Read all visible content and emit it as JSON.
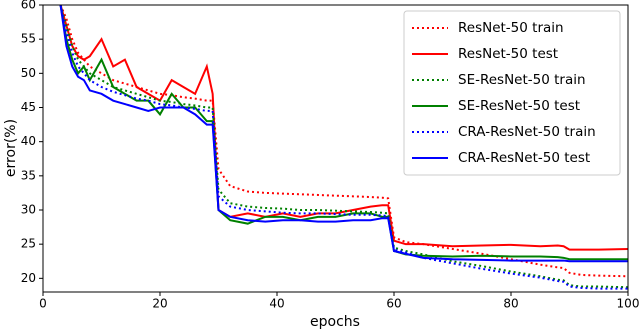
{
  "chart_data": {
    "type": "line",
    "xlabel": "epochs",
    "ylabel": "error(%)",
    "xlim": [
      0,
      100
    ],
    "xticks": [
      0,
      20,
      40,
      60,
      80,
      100
    ],
    "ylim": [
      18,
      60
    ],
    "yticks": [
      20,
      25,
      30,
      35,
      40,
      45,
      50,
      55,
      60
    ],
    "grid": false,
    "legend": "upper right",
    "x": [
      3,
      4,
      5,
      6,
      7,
      8,
      10,
      12,
      14,
      16,
      18,
      20,
      22,
      24,
      26,
      28,
      29,
      30,
      32,
      35,
      38,
      41,
      44,
      47,
      50,
      53,
      56,
      58,
      59,
      60,
      62,
      65,
      70,
      75,
      80,
      85,
      88,
      89,
      90,
      92,
      95,
      100
    ],
    "series": [
      {
        "name": "ResNet-50 train",
        "color": "#ff0000",
        "style": "dotted",
        "values": [
          60,
          58,
          55,
          53,
          52,
          51,
          50,
          49,
          48.5,
          48,
          47.5,
          47,
          46.8,
          46.5,
          46.3,
          46,
          46,
          36,
          33.5,
          32.7,
          32.5,
          32.4,
          32.3,
          32.2,
          32.1,
          32,
          31.9,
          31.8,
          31.7,
          26,
          25.3,
          25,
          24.3,
          23.6,
          22.8,
          22,
          21.6,
          21.5,
          20.8,
          20.5,
          20.4,
          20.3
        ]
      },
      {
        "name": "ResNet-50 test",
        "color": "#ff0000",
        "style": "solid",
        "values": [
          60,
          57,
          54,
          52.5,
          52,
          52.5,
          55,
          51,
          52,
          48,
          47,
          46,
          49,
          48,
          47,
          51,
          47,
          30,
          29,
          29.5,
          29,
          29.5,
          29,
          29.5,
          29.5,
          30,
          30.5,
          30.7,
          30.7,
          25.5,
          25,
          25,
          24.7,
          24.8,
          24.9,
          24.7,
          24.8,
          24.7,
          24.2,
          24.2,
          24.2,
          24.3
        ]
      },
      {
        "name": "SE-ResNet-50 train",
        "color": "#008000",
        "style": "dotted",
        "values": [
          60,
          57,
          54,
          52,
          51,
          50,
          49,
          48,
          47.5,
          47,
          46.5,
          46,
          45.8,
          45.5,
          45.3,
          45,
          45,
          33,
          31,
          30.5,
          30.3,
          30.2,
          30,
          30,
          29.9,
          29.8,
          29.7,
          29.6,
          29.5,
          24.5,
          24,
          23.5,
          22.5,
          21.8,
          21,
          20.3,
          19.8,
          19.7,
          19,
          18.8,
          18.8,
          18.7
        ]
      },
      {
        "name": "SE-ResNet-50 test",
        "color": "#008000",
        "style": "solid",
        "values": [
          60,
          55,
          52,
          50,
          51,
          49,
          52,
          48,
          47,
          46,
          46,
          44,
          47,
          45,
          45,
          43,
          43,
          30,
          28.5,
          28,
          29,
          29,
          28.5,
          29,
          29,
          29.5,
          29.5,
          29,
          29,
          24,
          23.5,
          23.3,
          23.2,
          23.3,
          23.2,
          23.2,
          23.1,
          23,
          22.8,
          22.8,
          22.8,
          22.8
        ]
      },
      {
        "name": "CRA-ResNet-50 train",
        "color": "#0000ff",
        "style": "dotted",
        "values": [
          60,
          56,
          53,
          51,
          50,
          49,
          48,
          47.3,
          46.8,
          46.3,
          46,
          45.5,
          45.3,
          45,
          44.8,
          44.5,
          44.5,
          32,
          30.5,
          30,
          29.8,
          29.6,
          29.5,
          29.5,
          29.4,
          29.3,
          29.3,
          29.2,
          29.1,
          24.2,
          23.8,
          23,
          22.2,
          21.4,
          20.7,
          20.1,
          19.6,
          19.5,
          18.8,
          18.6,
          18.5,
          18.5
        ]
      },
      {
        "name": "CRA-ResNet-50 test",
        "color": "#0000ff",
        "style": "solid",
        "values": [
          60,
          54,
          51,
          49.5,
          49,
          47.5,
          47,
          46,
          45.5,
          45,
          44.5,
          45,
          45,
          45,
          44,
          42.5,
          42.5,
          30,
          29,
          28.5,
          28.3,
          28.5,
          28.5,
          28.3,
          28.3,
          28.5,
          28.5,
          28.8,
          28.8,
          24,
          23.6,
          23,
          22.8,
          22.7,
          22.6,
          22.6,
          22.6,
          22.6,
          22.5,
          22.5,
          22.5,
          22.5
        ]
      }
    ]
  }
}
